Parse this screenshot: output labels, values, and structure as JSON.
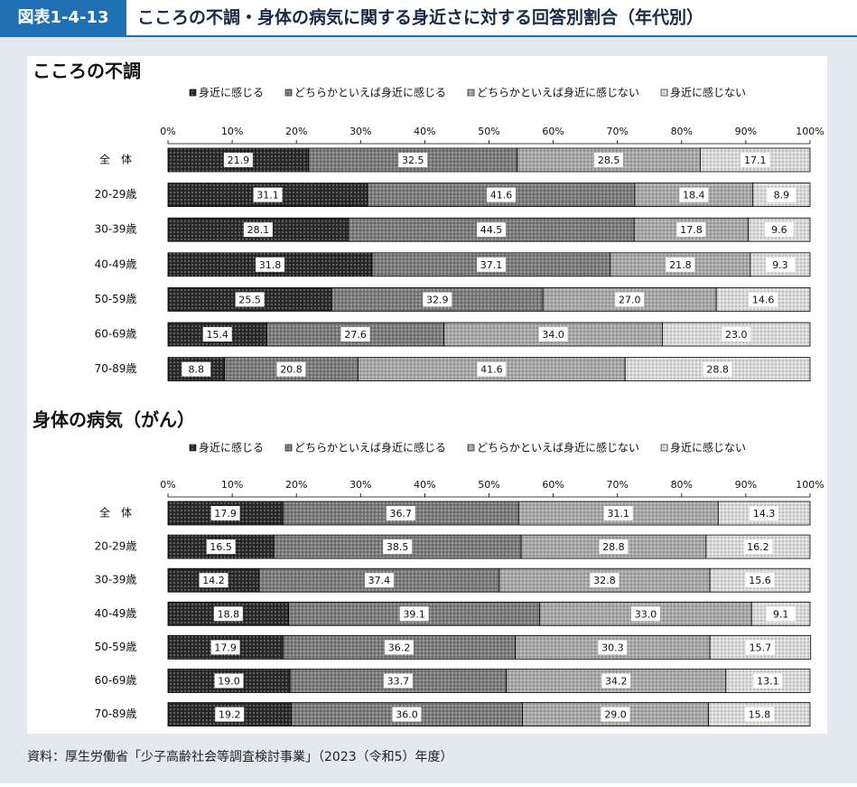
{
  "header": {
    "badge": "図表1-4-13",
    "title": "こころの不調・身体の病気に関する身近さに対する回答別割合（年代別）"
  },
  "chart_data": [
    {
      "type": "stacked-bar",
      "title": "こころの不調",
      "categories": [
        "全　体",
        "20-29歳",
        "30-39歳",
        "40-49歳",
        "50-59歳",
        "60-69歳",
        "70-89歳"
      ],
      "xlim": [
        0,
        100
      ],
      "xticks": [
        {
          "value": 0,
          "label": "0%"
        },
        {
          "value": 10,
          "label": "10%"
        },
        {
          "value": 20,
          "label": "20%"
        },
        {
          "value": 30,
          "label": "30%"
        },
        {
          "value": 40,
          "label": "40%"
        },
        {
          "value": 50,
          "label": "50%"
        },
        {
          "value": 60,
          "label": "60%"
        },
        {
          "value": 70,
          "label": "70%"
        },
        {
          "value": 80,
          "label": "80%"
        },
        {
          "value": 90,
          "label": "90%"
        },
        {
          "value": 100,
          "label": "100%"
        }
      ],
      "series": [
        {
          "name": "身近に感じる",
          "color": "#2a2a2a",
          "values": [
            21.9,
            31.1,
            28.1,
            31.8,
            25.5,
            15.4,
            8.8
          ],
          "value_labels": [
            "21.9",
            "31.1",
            "28.1",
            "31.8",
            "25.5",
            "15.4",
            "8.8"
          ]
        },
        {
          "name": "どちらかといえば身近に感じる",
          "color": "#7a7a7a",
          "values": [
            32.5,
            41.6,
            44.5,
            37.1,
            32.9,
            27.6,
            20.8
          ],
          "value_labels": [
            "32.5",
            "41.6",
            "44.5",
            "37.1",
            "32.9",
            "27.6",
            "20.8"
          ]
        },
        {
          "name": "どちらかといえば身近に感じない",
          "color": "#a8a8a8",
          "values": [
            28.5,
            18.4,
            17.8,
            21.8,
            27.0,
            34.0,
            41.6
          ],
          "value_labels": [
            "28.5",
            "18.4",
            "17.8",
            "21.8",
            "27.0",
            "34.0",
            "41.6"
          ]
        },
        {
          "name": "身近に感じない",
          "color": "#dcdcdc",
          "values": [
            17.1,
            8.9,
            9.6,
            9.3,
            14.6,
            23.0,
            28.8
          ],
          "value_labels": [
            "17.1",
            "8.9",
            "9.6",
            "9.3",
            "14.6",
            "23.0",
            "28.8"
          ]
        }
      ]
    },
    {
      "type": "stacked-bar",
      "title": "身体の病気（がん）",
      "categories": [
        "全　体",
        "20-29歳",
        "30-39歳",
        "40-49歳",
        "50-59歳",
        "60-69歳",
        "70-89歳"
      ],
      "xlim": [
        0,
        100
      ],
      "xticks": [
        {
          "value": 0,
          "label": "0%"
        },
        {
          "value": 10,
          "label": "10%"
        },
        {
          "value": 20,
          "label": "20%"
        },
        {
          "value": 30,
          "label": "30%"
        },
        {
          "value": 40,
          "label": "40%"
        },
        {
          "value": 50,
          "label": "50%"
        },
        {
          "value": 60,
          "label": "60%"
        },
        {
          "value": 70,
          "label": "70%"
        },
        {
          "value": 80,
          "label": "80%"
        },
        {
          "value": 90,
          "label": "90%"
        },
        {
          "value": 100,
          "label": "100%"
        }
      ],
      "series": [
        {
          "name": "身近に感じる",
          "color": "#2a2a2a",
          "values": [
            17.9,
            16.5,
            14.2,
            18.8,
            17.9,
            19.0,
            19.2
          ],
          "value_labels": [
            "17.9",
            "16.5",
            "14.2",
            "18.8",
            "17.9",
            "19.0",
            "19.2"
          ]
        },
        {
          "name": "どちらかといえば身近に感じる",
          "color": "#7a7a7a",
          "values": [
            36.7,
            38.5,
            37.4,
            39.1,
            36.2,
            33.7,
            36.0
          ],
          "value_labels": [
            "36.7",
            "38.5",
            "37.4",
            "39.1",
            "36.2",
            "33.7",
            "36.0"
          ]
        },
        {
          "name": "どちらかといえば身近に感じない",
          "color": "#a8a8a8",
          "values": [
            31.1,
            28.8,
            32.8,
            33.0,
            30.3,
            34.2,
            29.0
          ],
          "value_labels": [
            "31.1",
            "28.8",
            "32.8",
            "33.0",
            "30.3",
            "34.2",
            "29.0"
          ]
        },
        {
          "name": "身近に感じない",
          "color": "#dcdcdc",
          "values": [
            14.3,
            16.2,
            15.6,
            9.1,
            15.7,
            13.1,
            15.8
          ],
          "value_labels": [
            "14.3",
            "16.2",
            "15.6",
            "9.1",
            "15.7",
            "13.1",
            "15.8"
          ]
        }
      ]
    }
  ],
  "source": "資料：厚生労働省「少子高齢社会等調査検討事業」（2023（令和5）年度）"
}
